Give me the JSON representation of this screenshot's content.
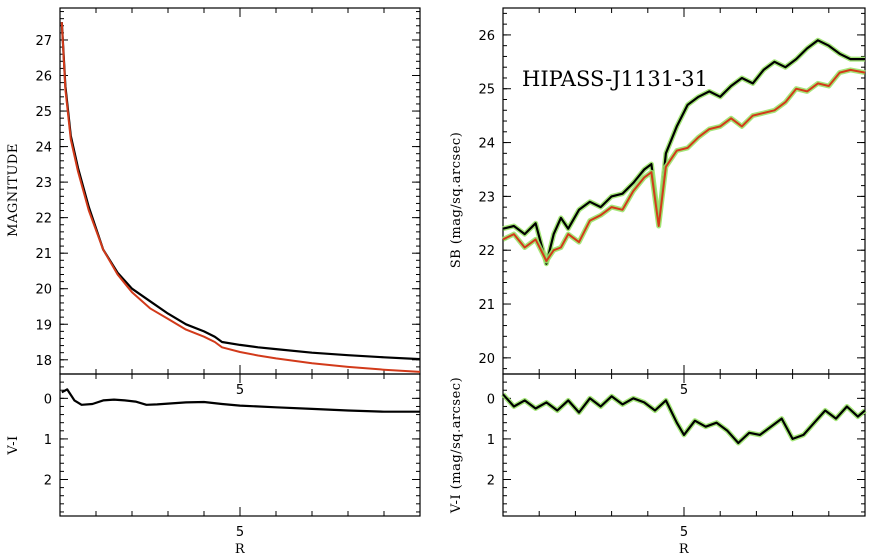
{
  "chart_data": [
    {
      "id": "growth",
      "type": "line",
      "ylabel": "MAGNITUDE",
      "xlim": [
        0,
        10
      ],
      "ylim": [
        27.9,
        17.6
      ],
      "yticks": [
        18,
        19,
        20,
        21,
        22,
        23,
        24,
        25,
        26,
        27
      ],
      "xticks": [
        5
      ],
      "series": [
        {
          "name": "red",
          "color": "#d23a1a",
          "x": [
            0.05,
            0.15,
            0.3,
            0.5,
            0.8,
            1.2,
            1.6,
            2.0,
            2.5,
            3.0,
            3.5,
            4.0,
            4.3,
            4.5,
            5.0,
            5.5,
            6.0,
            7.0,
            8.0,
            9.0,
            10.0
          ],
          "y": [
            27.5,
            25.6,
            24.2,
            23.3,
            22.2,
            21.1,
            20.4,
            19.9,
            19.45,
            19.15,
            18.85,
            18.65,
            18.5,
            18.35,
            18.22,
            18.12,
            18.04,
            17.9,
            17.8,
            17.72,
            17.66
          ]
        },
        {
          "name": "black",
          "color": "#000000",
          "x": [
            0.05,
            0.15,
            0.3,
            0.5,
            0.8,
            1.2,
            1.6,
            2.0,
            2.5,
            3.0,
            3.5,
            4.0,
            4.3,
            4.5,
            5.0,
            5.5,
            6.0,
            7.0,
            8.0,
            9.0,
            10.0
          ],
          "y": [
            27.5,
            25.7,
            24.3,
            23.4,
            22.3,
            21.1,
            20.45,
            20.0,
            19.65,
            19.3,
            19.0,
            18.8,
            18.65,
            18.5,
            18.42,
            18.35,
            18.3,
            18.2,
            18.13,
            18.07,
            18.02
          ]
        }
      ]
    },
    {
      "id": "growth-color",
      "type": "line",
      "xlabel": "R",
      "ylabel": "V-I",
      "xlim": [
        0,
        10
      ],
      "ylim": [
        -0.6,
        2.9
      ],
      "yticks": [
        0,
        1,
        2
      ],
      "xticks": [
        5
      ],
      "series": [
        {
          "name": "black",
          "color": "#000000",
          "x": [
            0.05,
            0.2,
            0.4,
            0.6,
            0.9,
            1.2,
            1.5,
            1.8,
            2.1,
            2.4,
            2.7,
            3.0,
            3.5,
            4.0,
            4.5,
            5.0,
            6.0,
            7.0,
            8.0,
            9.0,
            10.0
          ],
          "y": [
            -0.15,
            -0.22,
            0.05,
            0.16,
            0.14,
            0.05,
            0.03,
            0.05,
            0.08,
            0.16,
            0.15,
            0.13,
            0.1,
            0.09,
            0.14,
            0.18,
            0.22,
            0.26,
            0.3,
            0.33,
            0.33
          ]
        }
      ]
    },
    {
      "id": "profile",
      "type": "line",
      "title": "HIPASS-J1131-31",
      "ylabel": "SB (mag/sq.arcsec)",
      "xlim": [
        0,
        10
      ],
      "ylim": [
        26.5,
        19.7
      ],
      "yticks": [
        20,
        21,
        22,
        23,
        24,
        25,
        26
      ],
      "xticks": [
        5
      ],
      "series": [
        {
          "name": "red",
          "color": "#d23a1a",
          "x": [
            0,
            0.3,
            0.6,
            0.9,
            1.2,
            1.4,
            1.6,
            1.8,
            2.1,
            2.4,
            2.7,
            3.0,
            3.3,
            3.6,
            3.9,
            4.1,
            4.3,
            4.5,
            4.8,
            5.1,
            5.4,
            5.7,
            6.0,
            6.3,
            6.6,
            6.9,
            7.2,
            7.5,
            7.8,
            8.1,
            8.4,
            8.7,
            9.0,
            9.3,
            9.6,
            10.0
          ],
          "y": [
            22.2,
            22.3,
            22.05,
            22.2,
            21.8,
            22.0,
            22.05,
            22.3,
            22.15,
            22.55,
            22.65,
            22.8,
            22.75,
            23.1,
            23.35,
            23.45,
            22.45,
            23.55,
            23.85,
            23.9,
            24.1,
            24.25,
            24.3,
            24.45,
            24.3,
            24.5,
            24.55,
            24.6,
            24.75,
            25.0,
            24.95,
            25.1,
            25.05,
            25.3,
            25.35,
            25.3
          ]
        },
        {
          "name": "black",
          "color": "#000000",
          "x": [
            0,
            0.3,
            0.6,
            0.9,
            1.2,
            1.4,
            1.6,
            1.8,
            2.1,
            2.4,
            2.7,
            3.0,
            3.3,
            3.6,
            3.9,
            4.1,
            4.3,
            4.5,
            4.8,
            5.1,
            5.4,
            5.7,
            6.0,
            6.3,
            6.6,
            6.9,
            7.2,
            7.5,
            7.8,
            8.1,
            8.4,
            8.7,
            9.0,
            9.3,
            9.6,
            10.0
          ],
          "y": [
            22.4,
            22.45,
            22.3,
            22.5,
            21.75,
            22.3,
            22.6,
            22.4,
            22.75,
            22.9,
            22.8,
            23.0,
            23.05,
            23.25,
            23.5,
            23.6,
            22.5,
            23.8,
            24.3,
            24.7,
            24.85,
            24.95,
            24.85,
            25.05,
            25.2,
            25.1,
            25.35,
            25.5,
            25.4,
            25.55,
            25.75,
            25.9,
            25.8,
            25.65,
            25.55,
            25.55
          ]
        }
      ]
    },
    {
      "id": "profile-color",
      "type": "line",
      "xlabel": "R",
      "ylabel": "V-I (mag/sq.arcsec)",
      "xlim": [
        0,
        10
      ],
      "ylim": [
        -0.6,
        2.9
      ],
      "yticks": [
        0,
        1,
        2
      ],
      "xticks": [
        5
      ],
      "series": [
        {
          "name": "black",
          "color": "#000000",
          "x": [
            0,
            0.3,
            0.6,
            0.9,
            1.2,
            1.5,
            1.8,
            2.1,
            2.4,
            2.7,
            3.0,
            3.3,
            3.6,
            3.9,
            4.2,
            4.5,
            4.8,
            5.0,
            5.3,
            5.6,
            5.9,
            6.2,
            6.5,
            6.8,
            7.1,
            7.4,
            7.7,
            8.0,
            8.3,
            8.6,
            8.9,
            9.2,
            9.5,
            9.8,
            10.0
          ],
          "y": [
            -0.1,
            0.2,
            0.05,
            0.25,
            0.1,
            0.3,
            0.05,
            0.35,
            0.0,
            0.2,
            -0.05,
            0.15,
            0.0,
            0.1,
            0.3,
            0.05,
            0.6,
            0.9,
            0.55,
            0.7,
            0.6,
            0.8,
            1.1,
            0.85,
            0.9,
            0.7,
            0.5,
            1.0,
            0.9,
            0.6,
            0.3,
            0.5,
            0.2,
            0.45,
            0.3
          ]
        }
      ]
    }
  ]
}
